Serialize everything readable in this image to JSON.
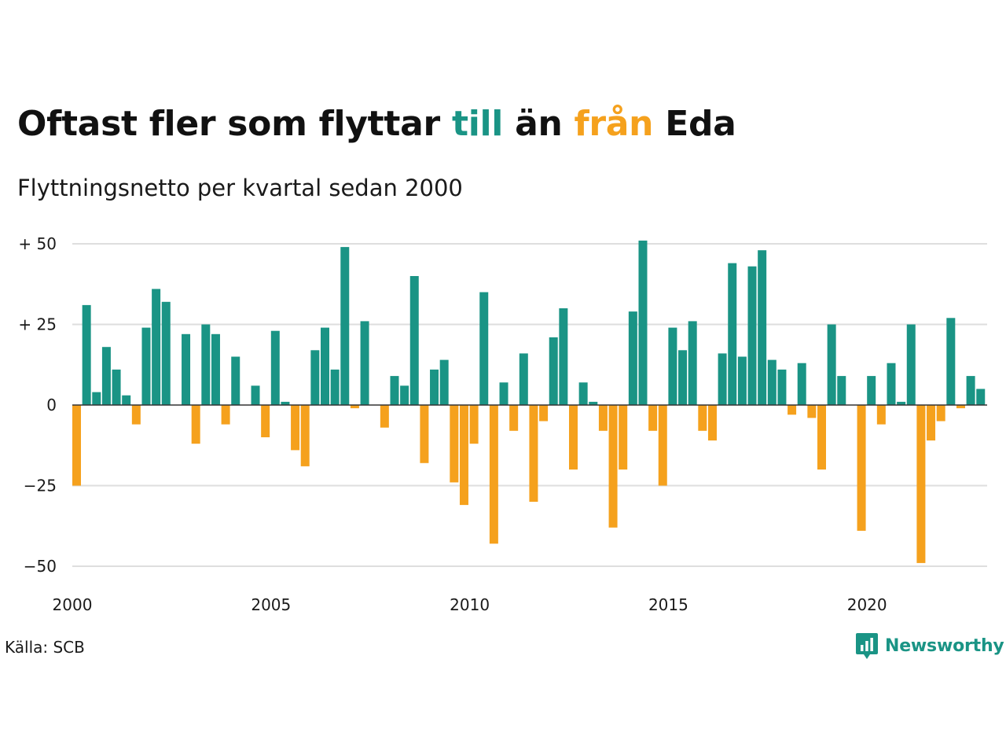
{
  "header": {
    "title_parts": [
      "Oftast fler som flyttar ",
      "till",
      " än ",
      "från",
      " Eda"
    ],
    "subtitle": "Flyttningsnetto per kvartal sedan 2000"
  },
  "footer": {
    "source": "Källa: SCB",
    "brand": "Newsworthy",
    "brand_icon": "newsworthy-logo-icon"
  },
  "colors": {
    "positive": "#1a9485",
    "negative": "#f5a11d",
    "grid": "#dedede",
    "text": "#1a1a1a"
  },
  "chart_data": {
    "type": "bar",
    "title": "Oftast fler som flyttar till än från Eda",
    "subtitle": "Flyttningsnetto per kvartal sedan 2000",
    "xlabel": "",
    "ylabel": "",
    "grid": true,
    "ylim": [
      -50,
      50
    ],
    "yticks": [
      50,
      25,
      0,
      -25,
      -50
    ],
    "ytick_labels": [
      "+ 50",
      "+ 25",
      "0",
      "−25",
      "−50"
    ],
    "xticks": [
      "2000",
      "2005",
      "2010",
      "2015",
      "2020"
    ],
    "start_quarter": "2000 Q1",
    "values": [
      -25,
      31,
      4,
      18,
      11,
      3,
      -6,
      24,
      36,
      32,
      0,
      22,
      -12,
      25,
      22,
      -6,
      15,
      0,
      6,
      -10,
      23,
      1,
      -14,
      -19,
      17,
      24,
      11,
      49,
      -1,
      26,
      0,
      -7,
      9,
      6,
      40,
      -18,
      11,
      14,
      -24,
      -31,
      -12,
      35,
      -43,
      7,
      -8,
      16,
      -30,
      -5,
      21,
      30,
      -20,
      7,
      1,
      -8,
      -38,
      -20,
      29,
      51,
      -8,
      -25,
      24,
      17,
      26,
      -8,
      -11,
      16,
      44,
      15,
      43,
      48,
      14,
      11,
      -3,
      13,
      -4,
      -20,
      25,
      9,
      0,
      -39,
      9,
      -6,
      13,
      1,
      25,
      -49,
      -11,
      -5,
      27,
      -1,
      9,
      5
    ]
  }
}
